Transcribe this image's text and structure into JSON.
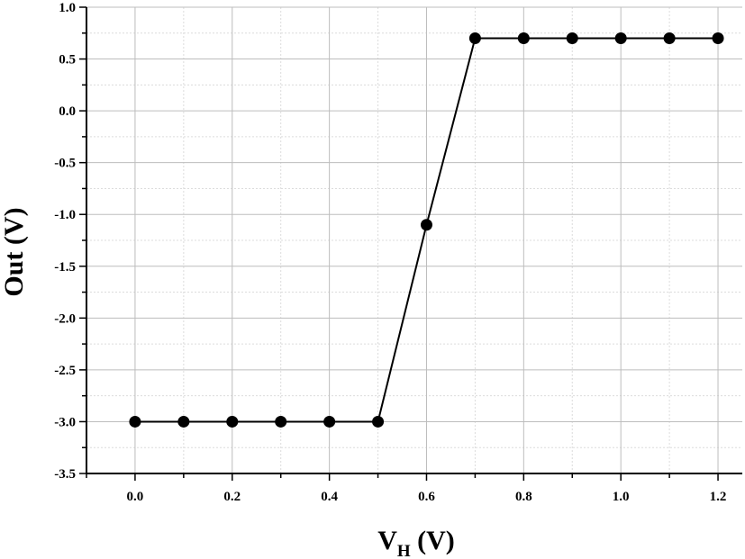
{
  "chart_data": {
    "type": "line",
    "title": "",
    "xlabel_main": "V",
    "xlabel_sub": "H",
    "xlabel_unit": " (V)",
    "ylabel": "Out (V)",
    "xlim": [
      -0.1,
      1.25
    ],
    "ylim": [
      -3.5,
      1.0
    ],
    "x_ticks": [
      0.0,
      0.2,
      0.4,
      0.6,
      0.8,
      1.0,
      1.2
    ],
    "x_tick_labels": [
      "0.0",
      "0.2",
      "0.4",
      "0.6",
      "0.8",
      "1.0",
      "1.2"
    ],
    "y_ticks": [
      1.0,
      0.5,
      0.0,
      -0.5,
      -1.0,
      -1.5,
      -2.0,
      -2.5,
      -3.0,
      -3.5
    ],
    "y_tick_labels": [
      "1.0",
      "0.5",
      "0.0",
      "-0.5",
      "-1.0",
      "-1.5",
      "-2.0",
      "-2.5",
      "-3.0",
      "-3.5"
    ],
    "grid": true,
    "series": [
      {
        "x": [
          0.0,
          0.1,
          0.2,
          0.3,
          0.4,
          0.5,
          0.6,
          0.7,
          0.8,
          0.9,
          1.0,
          1.1,
          1.2
        ],
        "y": [
          -3.0,
          -3.0,
          -3.0,
          -3.0,
          -3.0,
          -3.0,
          -1.1,
          0.7,
          0.7,
          0.7,
          0.7,
          0.7,
          0.7
        ]
      }
    ],
    "colors": {
      "line": "#000000",
      "marker": "#000000",
      "grid_major": "#bdbdbd",
      "grid_minor": "#dcdcdc"
    }
  }
}
